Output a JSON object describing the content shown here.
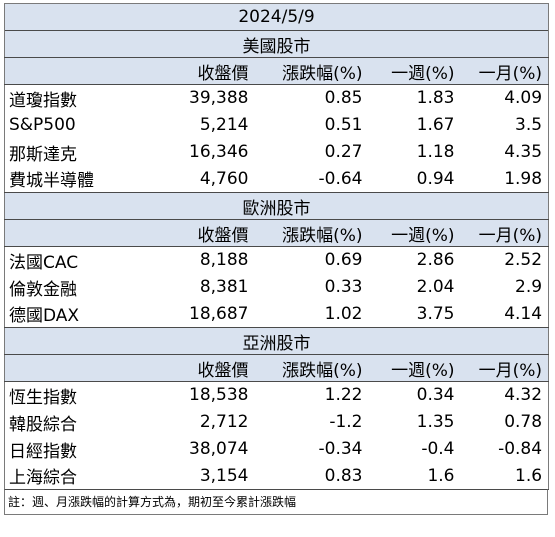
{
  "title": "2024/5/9",
  "columns": [
    "收盤價",
    "漲跌幅(%)",
    "一週(%)",
    "一月(%)"
  ],
  "sections": [
    {
      "name": "美國股市",
      "rows": [
        {
          "name": "道瓊指數",
          "close": "39,388",
          "change": "0.85",
          "week": "1.83",
          "month": "4.09"
        },
        {
          "name": "S&P500",
          "close": "5,214",
          "change": "0.51",
          "week": "1.67",
          "month": "3.5"
        },
        {
          "name": "那斯達克",
          "close": "16,346",
          "change": "0.27",
          "week": "1.18",
          "month": "4.35"
        },
        {
          "name": "費城半導體",
          "close": "4,760",
          "change": "-0.64",
          "week": "0.94",
          "month": "1.98"
        }
      ]
    },
    {
      "name": "歐洲股市",
      "rows": [
        {
          "name": "法國CAC",
          "close": "8,188",
          "change": "0.69",
          "week": "2.86",
          "month": "2.52"
        },
        {
          "name": "倫敦金融",
          "close": "8,381",
          "change": "0.33",
          "week": "2.04",
          "month": "2.9"
        },
        {
          "name": "德國DAX",
          "close": "18,687",
          "change": "1.02",
          "week": "3.75",
          "month": "4.14"
        }
      ]
    },
    {
      "name": "亞洲股市",
      "rows": [
        {
          "name": "恆生指數",
          "close": "18,538",
          "change": "1.22",
          "week": "0.34",
          "month": "4.32"
        },
        {
          "name": "韓股綜合",
          "close": "2,712",
          "change": "-1.2",
          "week": "1.35",
          "month": "0.78"
        },
        {
          "name": "日經指數",
          "close": "38,074",
          "change": "-0.34",
          "week": "-0.4",
          "month": "-0.84"
        },
        {
          "name": "上海綜合",
          "close": "3,154",
          "change": "0.83",
          "week": "1.6",
          "month": "1.6"
        }
      ]
    }
  ],
  "note": "註：週、月漲跌幅的計算方式為，期初至今累計漲跌幅",
  "colors": {
    "header_bg": "#d9e2ef",
    "border": "#7a7a7a",
    "text": "#000000"
  }
}
